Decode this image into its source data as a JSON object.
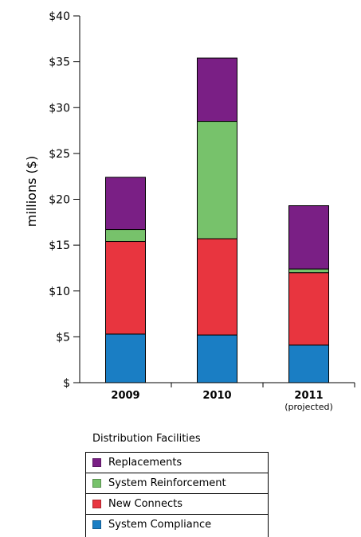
{
  "chart_data": {
    "type": "bar",
    "stacked": true,
    "title": "",
    "xlabel": "",
    "ylabel": "millions ($)",
    "ylim": [
      0,
      40
    ],
    "yticks": [
      "$",
      "$5",
      "$10",
      "$15",
      "$20",
      "$25",
      "$30",
      "$35",
      "$40"
    ],
    "categories": [
      "2009",
      "2010",
      "2011"
    ],
    "category_sublabels": [
      "",
      "",
      "(projected)"
    ],
    "series": [
      {
        "name": "System Compliance",
        "color": "#1a7ec4",
        "values": [
          5.3,
          5.2,
          4.1
        ]
      },
      {
        "name": "New Connects",
        "color": "#e8353f",
        "values": [
          10.1,
          10.5,
          7.9
        ]
      },
      {
        "name": "System Reinforcement",
        "color": "#77c26b",
        "values": [
          1.3,
          12.8,
          0.4
        ]
      },
      {
        "name": "Replacements",
        "color": "#7a1f85",
        "values": [
          5.7,
          6.9,
          6.9
        ]
      }
    ],
    "legend_title": "Distribution Facilities",
    "legend_order": [
      "Replacements",
      "System Reinforcement",
      "New Connects",
      "System Compliance"
    ],
    "legend_placement": "bottom",
    "grid": false
  }
}
